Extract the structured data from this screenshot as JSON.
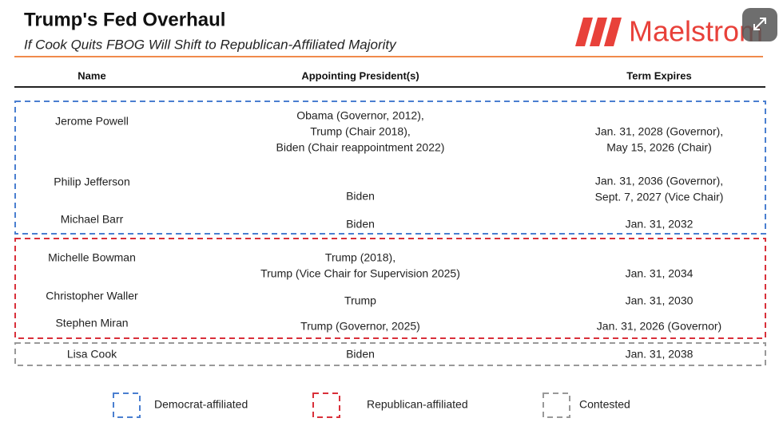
{
  "header": {
    "title": "Trump's Fed Overhaul",
    "subtitle": "If Cook Quits FBOG Will Shift to Republican-Affiliated Majority",
    "logo": "Maelstrom"
  },
  "table": {
    "columns": [
      "Name",
      "Appointing President(s)",
      "Term Expires"
    ],
    "rows": [
      [
        [
          "Jerome Powell"
        ],
        [
          "Obama (Governor, 2012),",
          "Trump (Chair 2018),",
          "Biden (Chair reappointment 2022)"
        ],
        [
          "Jan. 31, 2028 (Governor),",
          "May 15, 2026 (Chair)"
        ]
      ],
      [
        [
          "Philip Jefferson"
        ],
        [
          "Biden"
        ],
        [
          "Jan. 31, 2036 (Governor),",
          "Sept. 7, 2027 (Vice Chair)"
        ]
      ],
      [
        [
          "Michael Barr"
        ],
        [
          "Biden"
        ],
        [
          "Jan. 31, 2032"
        ]
      ],
      [
        [
          "Michelle Bowman"
        ],
        [
          "Trump (2018),",
          "Trump (Vice Chair for Supervision 2025)"
        ],
        [
          "Jan. 31, 2034"
        ]
      ],
      [
        [
          "Christopher Waller"
        ],
        [
          "Trump"
        ],
        [
          "Jan. 31, 2030"
        ]
      ],
      [
        [
          "Stephen Miran"
        ],
        [
          "Trump (Governor, 2025)"
        ],
        [
          "Jan. 31, 2026 (Governor)"
        ]
      ],
      [
        [
          "Lisa Cook"
        ],
        [
          "Biden"
        ],
        [
          "Jan. 31, 2038"
        ]
      ]
    ]
  },
  "legend": [
    {
      "label": "Democrat-affiliated",
      "color": "#4a7fd0"
    },
    {
      "label": "Republican-affiliated",
      "color": "#d9303a"
    },
    {
      "label": "Contested",
      "color": "#999999"
    }
  ]
}
